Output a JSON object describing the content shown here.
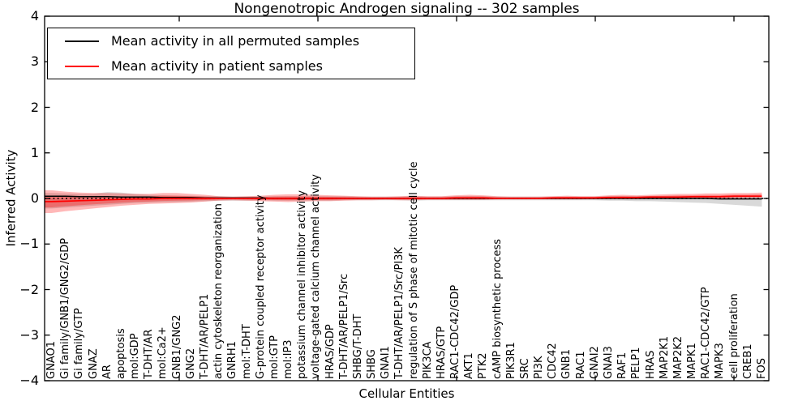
{
  "title": "Nongenotropic Androgen signaling -- 302 samples",
  "legend": {
    "entries": [
      {
        "label": "Mean activity in all permuted samples",
        "color": "#000000"
      },
      {
        "label": "Mean activity in patient samples",
        "color": "#ff0000"
      }
    ]
  },
  "chart_data": {
    "type": "line",
    "title": "Nongenotropic Androgen signaling -- 302 samples",
    "xlabel": "Cellular Entities",
    "ylabel": "Inferred Activity",
    "ylim": [
      -4,
      4
    ],
    "yticks": [
      4,
      3,
      2,
      1,
      0,
      -1,
      -2,
      -3,
      -4
    ],
    "grid": false,
    "legend_position": "upper left",
    "zero_reference_line": 0,
    "colors": {
      "permuted_line": "#000000",
      "patient_line": "#ff0000",
      "permuted_band": "rgba(0,0,0,0.15)",
      "patient_band": "rgba(255,0,0,0.28)",
      "patient_band_inner": "rgba(255,0,0,0.30)"
    },
    "categories": [
      "GNAO1",
      "Gi family/GNB1/GNG2/GDP",
      "Gi family/GTP",
      "GNAZ",
      "AR",
      "apoptosis",
      "mol:GDP",
      "T-DHT/AR",
      "mol:Ca2+",
      "GNB1/GNG2",
      "GNG2",
      "T-DHT/AR/PELP1",
      "actin cytoskeleton reorganization",
      "GNRH1",
      "mol:T-DHT",
      "G-protein coupled receptor activity",
      "mol:GTP",
      "mol:IP3",
      "potassium channel inhibitor activity",
      "voltage-gated calcium channel activity",
      "HRAS/GDP",
      "T-DHT/AR/PELP1/Src",
      "SHBG/T-DHT",
      "SHBG",
      "GNAI1",
      "T-DHT/AR/PELP1/Src/PI3K",
      "regulation of S phase of mitotic cell cycle",
      "PIK3CA",
      "HRAS/GTP",
      "RAC1-CDC42/GDP",
      "AKT1",
      "PTK2",
      "cAMP biosynthetic process",
      "PIK3R1",
      "SRC",
      "PI3K",
      "CDC42",
      "GNB1",
      "RAC1",
      "GNAI2",
      "GNAI3",
      "RAF1",
      "PELP1",
      "HRAS",
      "MAP2K1",
      "MAP2K2",
      "MAPK1",
      "RAC1-CDC42/GTP",
      "MAPK3",
      "cell proliferation",
      "CREB1",
      "FOS"
    ],
    "series": [
      {
        "name": "Mean activity in all permuted samples",
        "values": [
          0.05,
          0.05,
          0.04,
          0.04,
          0.04,
          0.03,
          0.03,
          0.03,
          0.02,
          0.02,
          0.02,
          0.01,
          0.01,
          0.01,
          0.01,
          0.01,
          0.0,
          0.0,
          0.0,
          0.0,
          0.0,
          0.0,
          0.0,
          0.0,
          0.0,
          0.0,
          0.0,
          0.0,
          0.0,
          0.0,
          0.0,
          0.0,
          0.0,
          0.0,
          0.0,
          0.0,
          0.0,
          0.0,
          0.0,
          0.0,
          0.0,
          0.0,
          0.0,
          0.0,
          0.0,
          0.0,
          0.0,
          0.0,
          -0.01,
          -0.01,
          -0.01,
          -0.01
        ]
      },
      {
        "name": "Mean activity in patient samples",
        "values": [
          -0.07,
          -0.06,
          -0.05,
          -0.04,
          -0.03,
          -0.02,
          -0.01,
          -0.01,
          0.0,
          0.0,
          0.0,
          0.0,
          0.0,
          0.0,
          0.0,
          0.0,
          0.0,
          0.0,
          0.0,
          0.0,
          0.0,
          0.0,
          0.0,
          0.0,
          0.0,
          0.0,
          0.0,
          0.0,
          0.0,
          0.01,
          0.01,
          0.01,
          0.0,
          0.0,
          0.0,
          0.0,
          0.01,
          0.01,
          0.01,
          0.01,
          0.02,
          0.02,
          0.02,
          0.03,
          0.03,
          0.03,
          0.04,
          0.04,
          0.04,
          0.05,
          0.05,
          0.05
        ]
      }
    ],
    "bands": {
      "patient_hi": [
        0.18,
        0.15,
        0.13,
        0.12,
        0.12,
        0.11,
        0.1,
        0.1,
        0.12,
        0.12,
        0.1,
        0.08,
        0.05,
        0.04,
        0.05,
        0.06,
        0.08,
        0.09,
        0.09,
        0.08,
        0.07,
        0.06,
        0.05,
        0.04,
        0.04,
        0.05,
        0.06,
        0.05,
        0.05,
        0.07,
        0.08,
        0.07,
        0.05,
        0.04,
        0.04,
        0.04,
        0.05,
        0.06,
        0.05,
        0.05,
        0.07,
        0.08,
        0.07,
        0.08,
        0.09,
        0.1,
        0.1,
        0.11,
        0.11,
        0.12,
        0.12,
        0.13
      ],
      "patient_lo": [
        -0.32,
        -0.28,
        -0.25,
        -0.22,
        -0.19,
        -0.16,
        -0.14,
        -0.12,
        -0.11,
        -0.1,
        -0.09,
        -0.07,
        -0.05,
        -0.04,
        -0.05,
        -0.06,
        -0.07,
        -0.08,
        -0.07,
        -0.06,
        -0.06,
        -0.05,
        -0.04,
        -0.04,
        -0.03,
        -0.04,
        -0.04,
        -0.03,
        -0.03,
        -0.03,
        -0.03,
        -0.03,
        -0.02,
        -0.02,
        -0.02,
        -0.02,
        -0.02,
        -0.02,
        -0.02,
        -0.01,
        -0.01,
        0.0,
        0.0,
        0.0,
        0.0,
        0.0,
        0.0,
        0.0,
        0.0,
        0.0,
        0.01,
        0.01
      ],
      "permuted_hi": [
        0.12,
        0.11,
        0.1,
        0.1,
        0.14,
        0.13,
        0.1,
        0.08,
        0.07,
        0.06,
        0.06,
        0.05,
        0.05,
        0.04,
        0.04,
        0.04,
        0.05,
        0.05,
        0.05,
        0.05,
        0.05,
        0.05,
        0.04,
        0.04,
        0.04,
        0.04,
        0.05,
        0.04,
        0.04,
        0.05,
        0.05,
        0.05,
        0.04,
        0.04,
        0.04,
        0.04,
        0.04,
        0.04,
        0.04,
        0.04,
        0.05,
        0.05,
        0.05,
        0.05,
        0.05,
        0.05,
        0.05,
        0.05,
        0.05,
        0.05,
        0.05,
        0.06
      ],
      "permuted_lo": [
        -0.22,
        -0.2,
        -0.18,
        -0.16,
        -0.14,
        -0.12,
        -0.1,
        -0.09,
        -0.08,
        -0.08,
        -0.07,
        -0.06,
        -0.05,
        -0.05,
        -0.05,
        -0.04,
        -0.05,
        -0.05,
        -0.05,
        -0.05,
        -0.05,
        -0.04,
        -0.04,
        -0.04,
        -0.04,
        -0.04,
        -0.05,
        -0.04,
        -0.04,
        -0.04,
        -0.04,
        -0.04,
        -0.04,
        -0.04,
        -0.04,
        -0.04,
        -0.04,
        -0.04,
        -0.04,
        -0.04,
        -0.05,
        -0.05,
        -0.06,
        -0.06,
        -0.07,
        -0.08,
        -0.09,
        -0.1,
        -0.12,
        -0.14,
        -0.16,
        -0.18
      ]
    }
  }
}
